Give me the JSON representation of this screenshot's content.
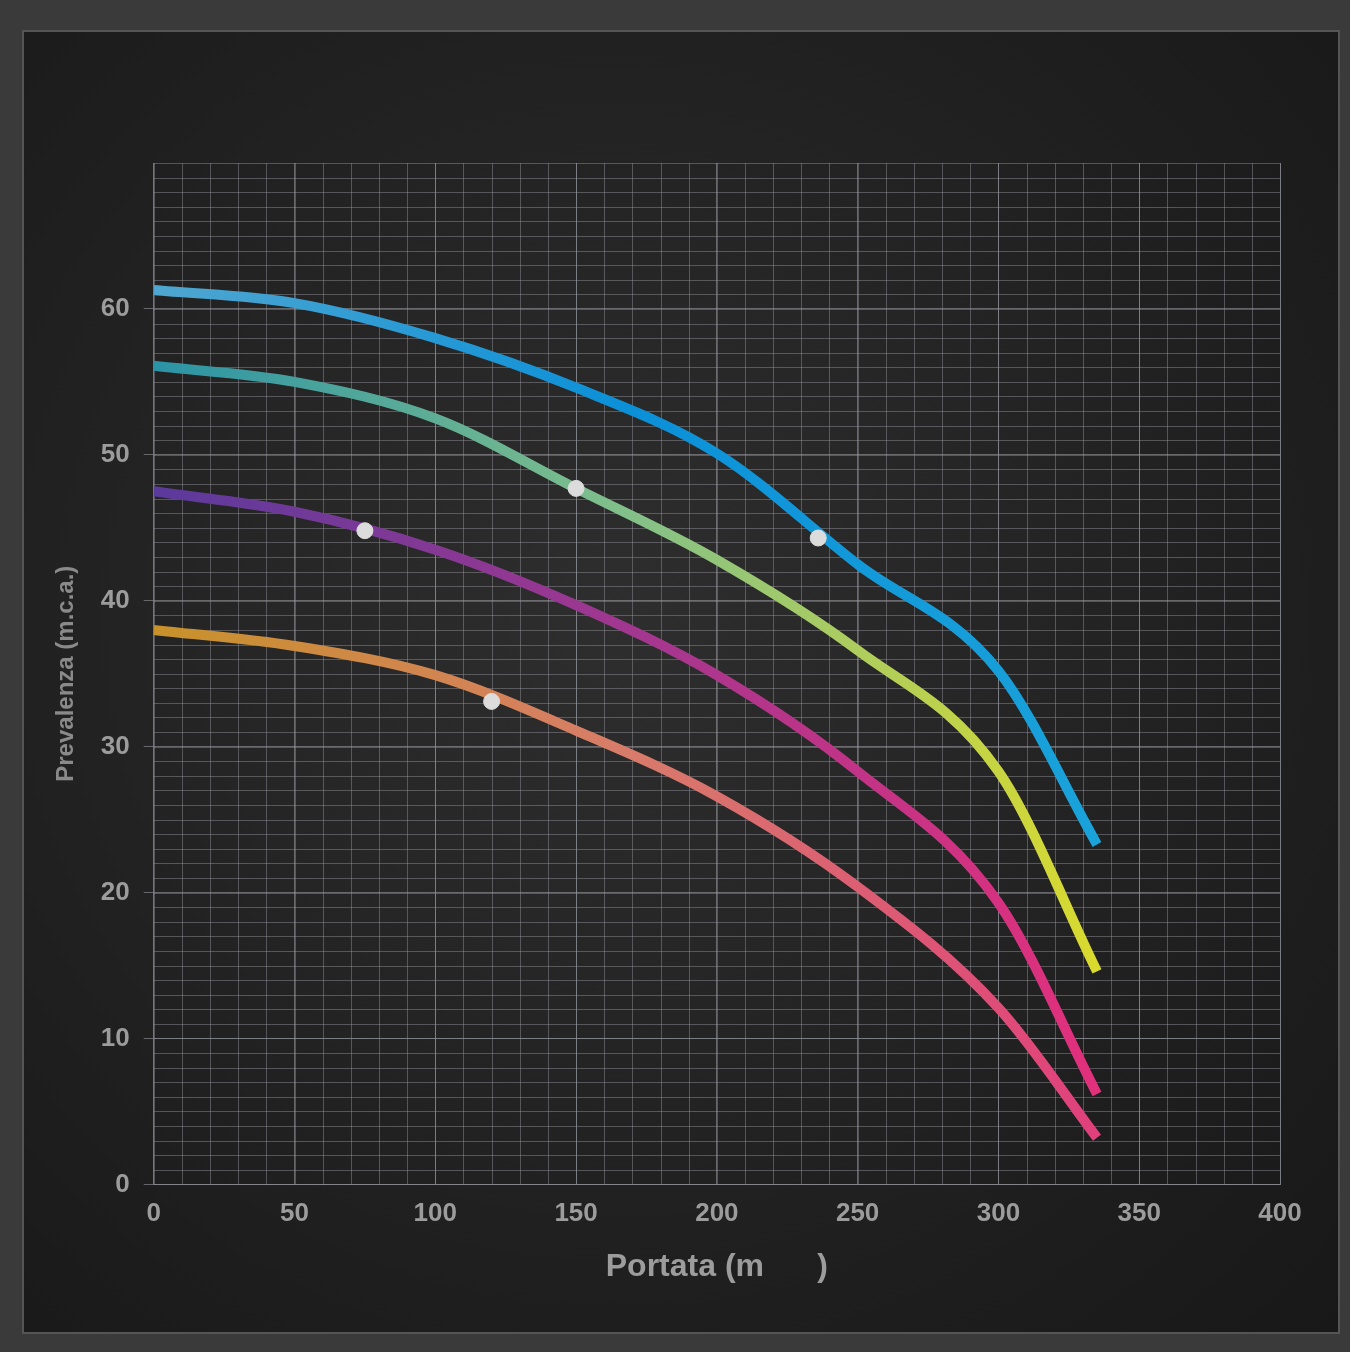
{
  "chart_data": {
    "type": "line",
    "x_label": "Portata (m      )",
    "y_label": "Prevalenza (m.c.a.)",
    "xlim": [
      0,
      400
    ],
    "xticks": [
      0,
      50,
      100,
      150,
      200,
      250,
      300,
      350,
      400
    ],
    "ylim": [
      0,
      70
    ],
    "yticks": [
      0,
      10,
      20,
      30,
      40,
      50,
      60
    ],
    "grid": true,
    "series": [
      {
        "color": [
          "#4fa6d0",
          "#0b90d8",
          "#1aa2da"
        ],
        "line_style": "solid",
        "x": [
          0,
          50,
          100,
          150,
          200,
          250,
          300,
          335
        ],
        "values": [
          61.3,
          60.4,
          58.0,
          54.6,
          50.1,
          42.5,
          35.2,
          23.3
        ]
      },
      {
        "color": [
          "#2a93a6",
          "#82c08a",
          "#dada2e"
        ],
        "line_style": "solid",
        "x": [
          0,
          50,
          100,
          150,
          200,
          250,
          300,
          335
        ],
        "values": [
          56.1,
          55.0,
          52.5,
          47.7,
          42.8,
          36.6,
          28.3,
          14.6
        ]
      },
      {
        "color": [
          "#5a3a9c",
          "#a23790",
          "#e2307c"
        ],
        "line_style": "solid",
        "x": [
          0,
          50,
          100,
          150,
          200,
          250,
          300,
          335
        ],
        "values": [
          47.5,
          46.1,
          43.5,
          39.7,
          34.9,
          28.3,
          19.3,
          6.2
        ]
      },
      {
        "color": [
          "#c8922a",
          "#d87c6a",
          "#e0407c"
        ],
        "line_style": "solid",
        "x": [
          0,
          50,
          100,
          150,
          200,
          250,
          300,
          335
        ],
        "values": [
          38.0,
          36.9,
          34.9,
          31.1,
          26.6,
          20.4,
          12.1,
          3.2
        ]
      }
    ],
    "operating_points": {
      "x": [
        236,
        150,
        75,
        120
      ],
      "values": [
        44.3,
        47.7,
        44.8,
        33.1
      ],
      "color": "#dcdcdc",
      "marker": "circle"
    }
  }
}
